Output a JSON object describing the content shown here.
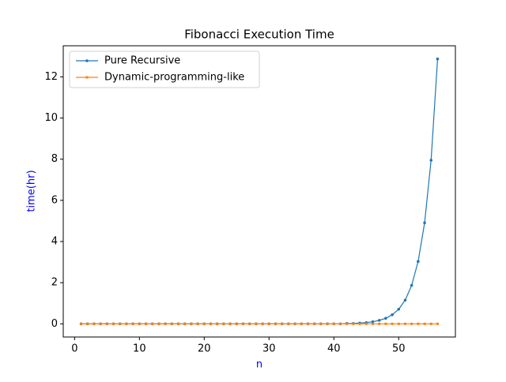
{
  "chart_data": {
    "type": "line",
    "title": "Fibonacci Execution Time",
    "xlabel": "n",
    "ylabel": "time(hr)",
    "label_color": "#0000ff",
    "x": [
      1,
      2,
      3,
      4,
      5,
      6,
      7,
      8,
      9,
      10,
      11,
      12,
      13,
      14,
      15,
      16,
      17,
      18,
      19,
      20,
      21,
      22,
      23,
      24,
      25,
      26,
      27,
      28,
      29,
      30,
      31,
      32,
      33,
      34,
      35,
      36,
      37,
      38,
      39,
      40,
      41,
      42,
      43,
      44,
      45,
      46,
      47,
      48,
      49,
      50,
      51,
      52,
      53,
      54,
      55,
      56
    ],
    "series": [
      {
        "name": "Pure Recursive",
        "color": "#1f77b4",
        "marker": "circle",
        "values": [
          0,
          0,
          0,
          0,
          0,
          0,
          0,
          0,
          0,
          0,
          0,
          0,
          0,
          0,
          0,
          0,
          0,
          0,
          0,
          0,
          0,
          0,
          0,
          0,
          0,
          0,
          0,
          0,
          0,
          0,
          0,
          0,
          0,
          0,
          0,
          0,
          0,
          0,
          0,
          0,
          0,
          0.02,
          0.02,
          0.04,
          0.06,
          0.1,
          0.17,
          0.27,
          0.44,
          0.71,
          1.15,
          1.87,
          3.03,
          4.91,
          7.95,
          12.87
        ]
      },
      {
        "name": "Dynamic-programming-like",
        "color": "#ff7f0e",
        "marker": "square",
        "values": [
          0,
          0,
          0,
          0,
          0,
          0,
          0,
          0,
          0,
          0,
          0,
          0,
          0,
          0,
          0,
          0,
          0,
          0,
          0,
          0,
          0,
          0,
          0,
          0,
          0,
          0,
          0,
          0,
          0,
          0,
          0,
          0,
          0,
          0,
          0,
          0,
          0,
          0,
          0,
          0,
          0,
          0,
          0,
          0,
          0,
          0,
          0,
          0,
          0,
          0,
          0,
          0,
          0,
          0,
          0,
          0
        ]
      }
    ],
    "xlim": [
      -1.75,
      58.75
    ],
    "xticks": [
      0,
      10,
      20,
      30,
      40,
      50
    ],
    "ylim": [
      -0.64,
      13.51
    ],
    "yticks": [
      0,
      2,
      4,
      6,
      8,
      10,
      12
    ],
    "legend": "upper left"
  }
}
